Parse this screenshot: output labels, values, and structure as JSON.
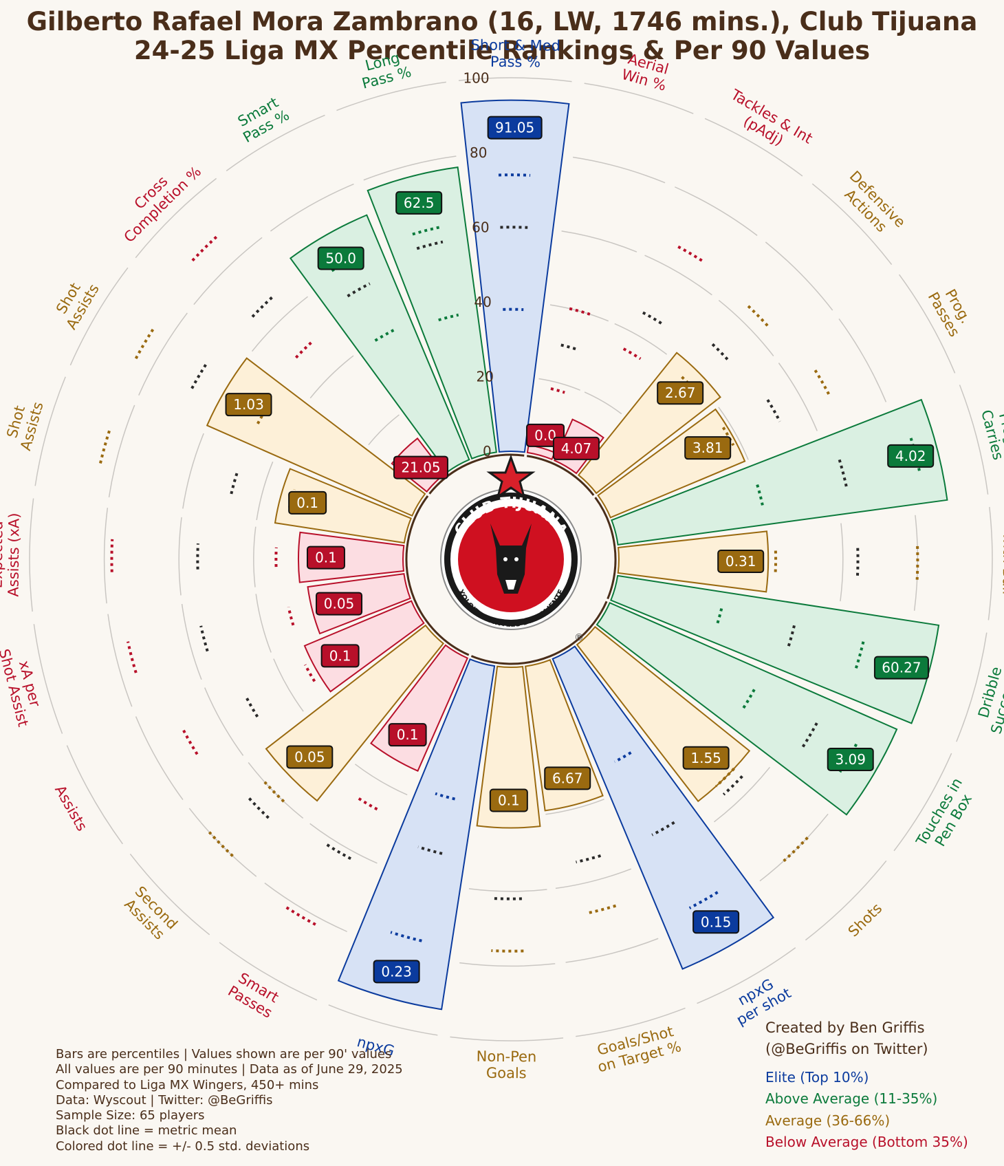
{
  "title": {
    "line1": "Gilberto Rafael Mora Zambrano (16, LW, 1746 mins.), Club Tijuana",
    "line2": "24-25 Liga MX Percentile Rankings & Per 90 Values"
  },
  "colors": {
    "elite": "#0b3b9e",
    "above_average": "#0b7a3b",
    "average": "#9a6a10",
    "below_average": "#b8102a",
    "title": "#4a2e1a",
    "background": "#faf7f2"
  },
  "chart_data": {
    "type": "radial-bar",
    "radial_axis": {
      "range": [
        0,
        100
      ],
      "ticks": [
        "0",
        "20",
        "40",
        "60",
        "80",
        "100"
      ]
    },
    "metrics": [
      {
        "label": "Aerial\nWin %",
        "value": "0.0",
        "percentile": 2,
        "tier": "below_average",
        "mean": 30,
        "sd": [
          18,
          40
        ]
      },
      {
        "label": "Tackles & Int\n(pAdj)",
        "value": "4.07",
        "percentile": 12,
        "tier": "below_average",
        "mean": 46,
        "sd": [
          35,
          66
        ]
      },
      {
        "label": "Defensive\nActions",
        "value": "2.67",
        "percentile": 42,
        "tier": "average",
        "mean": 50,
        "sd": [
          38,
          64
        ]
      },
      {
        "label": "Prog.\nPasses",
        "value": "3.81",
        "percentile": 39,
        "tier": "average",
        "mean": 52,
        "sd": [
          38,
          67
        ]
      },
      {
        "label": "Prog.\nCarries",
        "value": "4.02",
        "percentile": 89,
        "tier": "above_average",
        "mean": 63,
        "sd": [
          40,
          83
        ]
      },
      {
        "label": "Acceleration\nwith Ball",
        "value": "0.31",
        "percentile": 40,
        "tier": "average",
        "mean": 64,
        "sd": [
          42,
          80
        ]
      },
      {
        "label": "Dribble\nSuccess %",
        "value": "60.27",
        "percentile": 87,
        "tier": "above_average",
        "mean": 49,
        "sd": [
          29,
          68
        ]
      },
      {
        "label": "Touches in\nPen Box",
        "value": "3.09",
        "percentile": 84,
        "tier": "above_average",
        "mean": 64,
        "sd": [
          45,
          76
        ]
      },
      {
        "label": "Shots",
        "value": "1.55",
        "percentile": 53,
        "tier": "average",
        "mean": 56,
        "sd": [
          53,
          80
        ]
      },
      {
        "label": "npxG\nper shot",
        "value": "0.15",
        "percentile": 90,
        "tier": "elite",
        "mean": 54,
        "sd": [
          32,
          76
        ]
      },
      {
        "label": "Goals/Shot\non Target %",
        "value": "6.67",
        "percentile": 39,
        "tier": "average",
        "mean": 54,
        "sd": [
          30,
          68
        ]
      },
      {
        "label": "Non-Pen\nGoals",
        "value": "0.1",
        "percentile": 43,
        "tier": "average",
        "mean": 62,
        "sd": [
          38,
          76
        ]
      },
      {
        "label": "npxG",
        "value": "0.23",
        "percentile": 93,
        "tier": "elite",
        "mean": 52,
        "sd": [
          37,
          76
        ]
      },
      {
        "label": "Smart\nPasses",
        "value": "0.1",
        "percentile": 33,
        "tier": "below_average",
        "mean": 62,
        "sd": [
          47,
          82
        ]
      },
      {
        "label": "Second\nAssists",
        "value": "0.05",
        "percentile": 54,
        "tier": "average",
        "mean": 66,
        "sd": [
          60,
          80
        ]
      },
      {
        "label": "Assists",
        "value": "0.1",
        "percentile": 31,
        "tier": "below_average",
        "mean": 51,
        "sd": [
          33,
          70
        ]
      },
      {
        "label": "xA per\nShot Assist",
        "value": "0.05",
        "percentile": 26,
        "tier": "below_average",
        "mean": 56,
        "sd": [
          32,
          76
        ]
      },
      {
        "label": "Expected\nAssists (xA)",
        "value": "0.1",
        "percentile": 28,
        "tier": "below_average",
        "mean": 55,
        "sd": [
          34,
          78
        ]
      },
      {
        "label": "Shot\nAssists",
        "value": "0.1",
        "percentile": 35,
        "tier": "average",
        "mean": 48,
        "sd": [
          32,
          84
        ]
      },
      {
        "label": "Shot\nAssists",
        "value": "1.03",
        "percentile": 60,
        "tier": "average",
        "mean": 68,
        "sd": [
          48,
          85
        ]
      },
      {
        "label": "Cross\nCompletion %",
        "value": "21.05",
        "percentile": 12,
        "tier": "below_average",
        "mean": 66,
        "sd": [
          50,
          88
        ]
      },
      {
        "label": "Smart\nPass %",
        "value": "50.0",
        "percentile": 71,
        "tier": "above_average",
        "mean": 54,
        "sd": [
          40,
          62
        ]
      },
      {
        "label": "Long\nPass %",
        "value": "62.5",
        "percentile": 77,
        "tier": "above_average",
        "mean": 58,
        "sd": [
          38,
          62
        ]
      },
      {
        "label": "Short & Med\nPass %",
        "value": "91.05",
        "percentile": 94,
        "tier": "elite",
        "mean": 60,
        "sd": [
          38,
          74
        ]
      }
    ]
  },
  "notes": [
    "Bars are percentiles | Values shown are per 90' values",
    "All values are per 90 minutes | Data as of June 29, 2025",
    "Compared to Liga MX Wingers, 450+ mins",
    "Data: Wyscout | Twitter: @BeGriffis",
    "Sample Size: 65 players",
    "Black dot line = metric mean",
    "Colored dot line = +/- 0.5 std. deviations"
  ],
  "credit": {
    "line1": "Created by Ben Griffis",
    "line2": "(@BeGriffis on Twitter)"
  },
  "legend": [
    {
      "label": "Elite (Top 10%)",
      "tier": "elite"
    },
    {
      "label": "Above Average (11-35%)",
      "tier": "above_average"
    },
    {
      "label": "Average (36-66%)",
      "tier": "average"
    },
    {
      "label": "Below Average (Bottom 35%)",
      "tier": "below_average"
    }
  ],
  "logo": {
    "text_top": "CLUB TIJUANA",
    "text_bottom": "XOLOITZCUINTLES DE CALIENTE",
    "mark": "®"
  }
}
